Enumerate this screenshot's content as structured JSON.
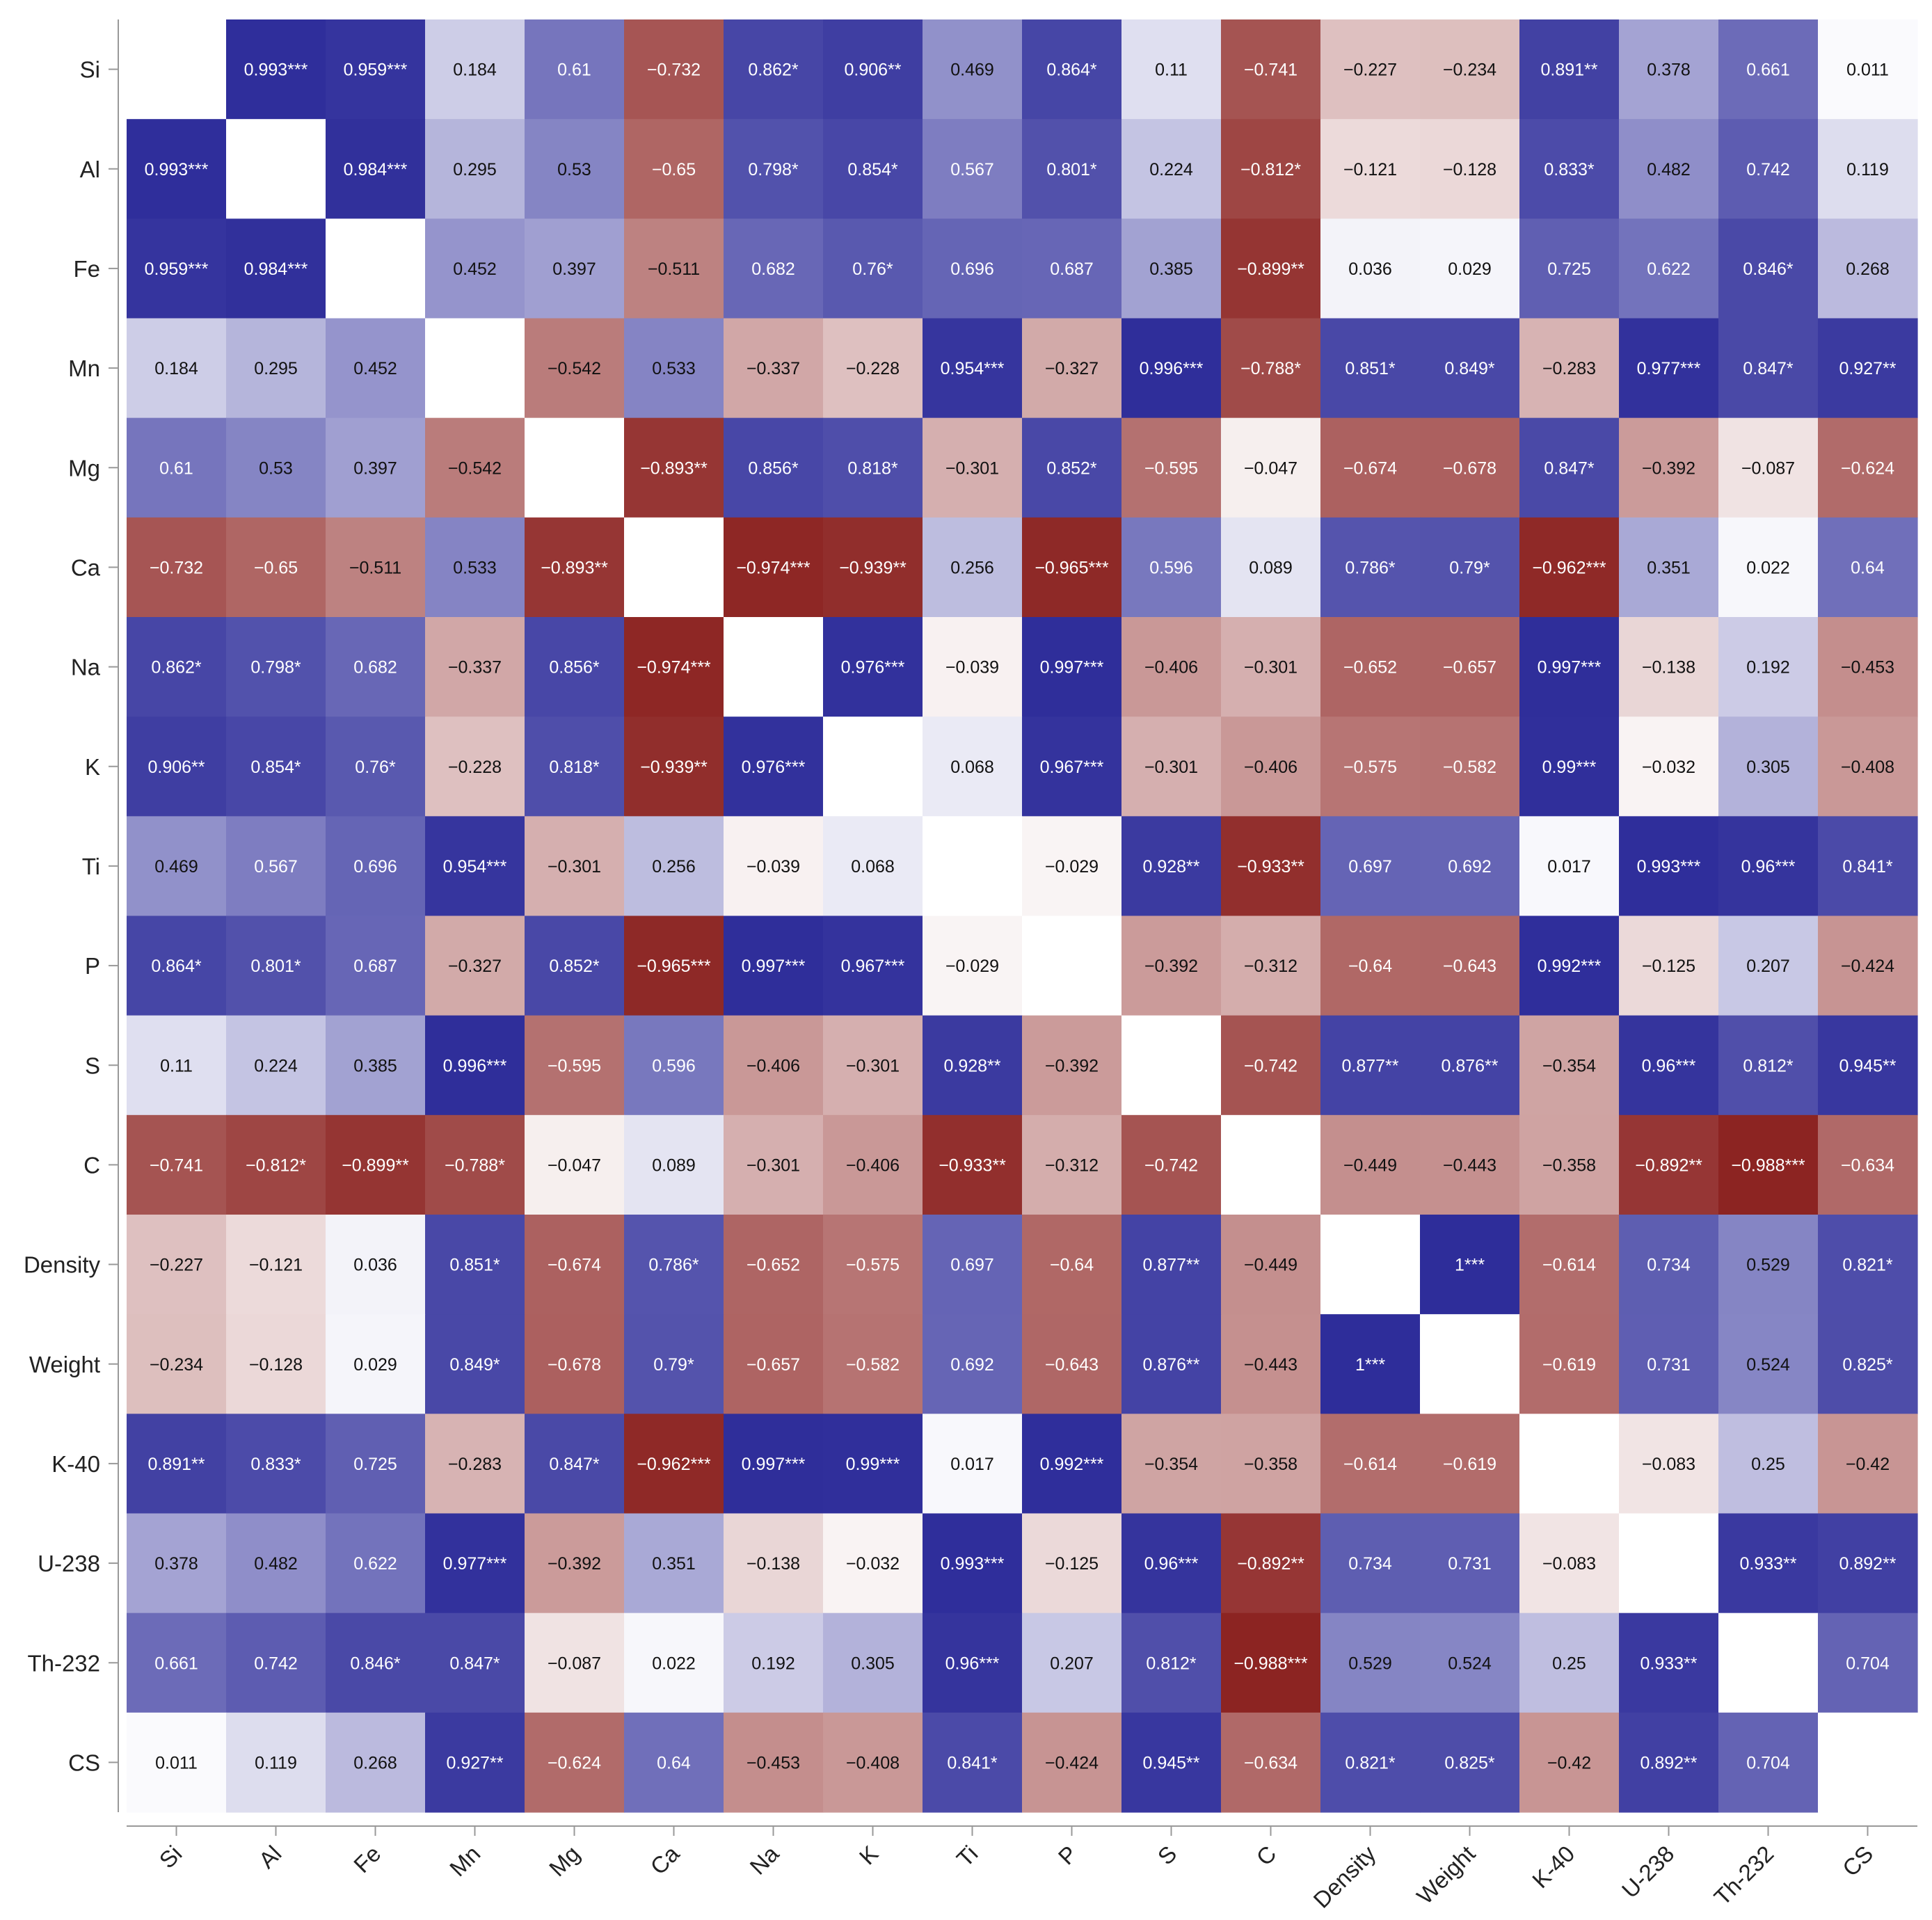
{
  "chart_data": {
    "type": "heatmap",
    "title": "",
    "xlabel": "",
    "ylabel": "",
    "categories": [
      "Si",
      "Al",
      "Fe",
      "Mn",
      "Mg",
      "Ca",
      "Na",
      "K",
      "Ti",
      "P",
      "S",
      "C",
      "Density",
      "Weight",
      "K-40",
      "U-238",
      "Th-232",
      "CS"
    ],
    "value_range": [
      -1,
      1
    ],
    "colors": {
      "negative": "#8b2220",
      "zero": "#ffffff",
      "positive": "#2e2d9a",
      "axis": "#999999",
      "text_dark": "#111111",
      "text_light": "#ffffff"
    },
    "grid": false,
    "legend": "none",
    "rows": [
      {
        "name": "Si",
        "labels": [
          "",
          "0.993***",
          "0.959***",
          "0.184",
          "0.61",
          "−0.732",
          "0.862*",
          "0.906**",
          "0.469",
          "0.864*",
          "0.11",
          "−0.741",
          "−0.227",
          "−0.234",
          "0.891**",
          "0.378",
          "0.661",
          "0.011"
        ]
      },
      {
        "name": "Al",
        "labels": [
          "0.993***",
          "",
          "0.984***",
          "0.295",
          "0.53",
          "−0.65",
          "0.798*",
          "0.854*",
          "0.567",
          "0.801*",
          "0.224",
          "−0.812*",
          "−0.121",
          "−0.128",
          "0.833*",
          "0.482",
          "0.742",
          "0.119"
        ]
      },
      {
        "name": "Fe",
        "labels": [
          "0.959***",
          "0.984***",
          "",
          "0.452",
          "0.397",
          "−0.511",
          "0.682",
          "0.76*",
          "0.696",
          "0.687",
          "0.385",
          "−0.899**",
          "0.036",
          "0.029",
          "0.725",
          "0.622",
          "0.846*",
          "0.268"
        ]
      },
      {
        "name": "Mn",
        "labels": [
          "0.184",
          "0.295",
          "0.452",
          "",
          "−0.542",
          "0.533",
          "−0.337",
          "−0.228",
          "0.954***",
          "−0.327",
          "0.996***",
          "−0.788*",
          "0.851*",
          "0.849*",
          "−0.283",
          "0.977***",
          "0.847*",
          "0.927**"
        ]
      },
      {
        "name": "Mg",
        "labels": [
          "0.61",
          "0.53",
          "0.397",
          "−0.542",
          "",
          "−0.893**",
          "0.856*",
          "0.818*",
          "−0.301",
          "0.852*",
          "−0.595",
          "−0.047",
          "−0.674",
          "−0.678",
          "0.847*",
          "−0.392",
          "−0.087",
          "−0.624"
        ]
      },
      {
        "name": "Ca",
        "labels": [
          "−0.732",
          "−0.65",
          "−0.511",
          "0.533",
          "−0.893**",
          "",
          "−0.974***",
          "−0.939**",
          "0.256",
          "−0.965***",
          "0.596",
          "0.089",
          "0.786*",
          "0.79*",
          "−0.962***",
          "0.351",
          "0.022",
          "0.64"
        ]
      },
      {
        "name": "Na",
        "labels": [
          "0.862*",
          "0.798*",
          "0.682",
          "−0.337",
          "0.856*",
          "−0.974***",
          "",
          "0.976***",
          "−0.039",
          "0.997***",
          "−0.406",
          "−0.301",
          "−0.652",
          "−0.657",
          "0.997***",
          "−0.138",
          "0.192",
          "−0.453"
        ]
      },
      {
        "name": "K",
        "labels": [
          "0.906**",
          "0.854*",
          "0.76*",
          "−0.228",
          "0.818*",
          "−0.939**",
          "0.976***",
          "",
          "0.068",
          "0.967***",
          "−0.301",
          "−0.406",
          "−0.575",
          "−0.582",
          "0.99***",
          "−0.032",
          "0.305",
          "−0.408"
        ]
      },
      {
        "name": "Ti",
        "labels": [
          "0.469",
          "0.567",
          "0.696",
          "0.954***",
          "−0.301",
          "0.256",
          "−0.039",
          "0.068",
          "",
          "−0.029",
          "0.928**",
          "−0.933**",
          "0.697",
          "0.692",
          "0.017",
          "0.993***",
          "0.96***",
          "0.841*"
        ]
      },
      {
        "name": "P",
        "labels": [
          "0.864*",
          "0.801*",
          "0.687",
          "−0.327",
          "0.852*",
          "−0.965***",
          "0.997***",
          "0.967***",
          "−0.029",
          "",
          "−0.392",
          "−0.312",
          "−0.64",
          "−0.643",
          "0.992***",
          "−0.125",
          "0.207",
          "−0.424"
        ]
      },
      {
        "name": "S",
        "labels": [
          "0.11",
          "0.224",
          "0.385",
          "0.996***",
          "−0.595",
          "0.596",
          "−0.406",
          "−0.301",
          "0.928**",
          "−0.392",
          "",
          "−0.742",
          "0.877**",
          "0.876**",
          "−0.354",
          "0.96***",
          "0.812*",
          "0.945**"
        ]
      },
      {
        "name": "C",
        "labels": [
          "−0.741",
          "−0.812*",
          "−0.899**",
          "−0.788*",
          "−0.047",
          "0.089",
          "−0.301",
          "−0.406",
          "−0.933**",
          "−0.312",
          "−0.742",
          "",
          "−0.449",
          "−0.443",
          "−0.358",
          "−0.892**",
          "−0.988***",
          "−0.634"
        ]
      },
      {
        "name": "Density",
        "labels": [
          "−0.227",
          "−0.121",
          "0.036",
          "0.851*",
          "−0.674",
          "0.786*",
          "−0.652",
          "−0.575",
          "0.697",
          "−0.64",
          "0.877**",
          "−0.449",
          "",
          "1***",
          "−0.614",
          "0.734",
          "0.529",
          "0.821*"
        ]
      },
      {
        "name": "Weight",
        "labels": [
          "−0.234",
          "−0.128",
          "0.029",
          "0.849*",
          "−0.678",
          "0.79*",
          "−0.657",
          "−0.582",
          "0.692",
          "−0.643",
          "0.876**",
          "−0.443",
          "1***",
          "",
          "−0.619",
          "0.731",
          "0.524",
          "0.825*"
        ]
      },
      {
        "name": "K-40",
        "labels": [
          "0.891**",
          "0.833*",
          "0.725",
          "−0.283",
          "0.847*",
          "−0.962***",
          "0.997***",
          "0.99***",
          "0.017",
          "0.992***",
          "−0.354",
          "−0.358",
          "−0.614",
          "−0.619",
          "",
          "−0.083",
          "0.25",
          "−0.42"
        ]
      },
      {
        "name": "U-238",
        "labels": [
          "0.378",
          "0.482",
          "0.622",
          "0.977***",
          "−0.392",
          "0.351",
          "−0.138",
          "−0.032",
          "0.993***",
          "−0.125",
          "0.96***",
          "−0.892**",
          "0.734",
          "0.731",
          "−0.083",
          "",
          "0.933**",
          "0.892**"
        ]
      },
      {
        "name": "Th-232",
        "labels": [
          "0.661",
          "0.742",
          "0.846*",
          "0.847*",
          "−0.087",
          "0.022",
          "0.192",
          "0.305",
          "0.96***",
          "0.207",
          "0.812*",
          "−0.988***",
          "0.529",
          "0.524",
          "0.25",
          "0.933**",
          "",
          "0.704"
        ]
      },
      {
        "name": "CS",
        "labels": [
          "0.011",
          "0.119",
          "0.268",
          "0.927**",
          "−0.624",
          "0.64",
          "−0.453",
          "−0.408",
          "0.841*",
          "−0.424",
          "0.945**",
          "−0.634",
          "0.821*",
          "0.825*",
          "−0.42",
          "0.892**",
          "0.704",
          ""
        ]
      }
    ]
  }
}
